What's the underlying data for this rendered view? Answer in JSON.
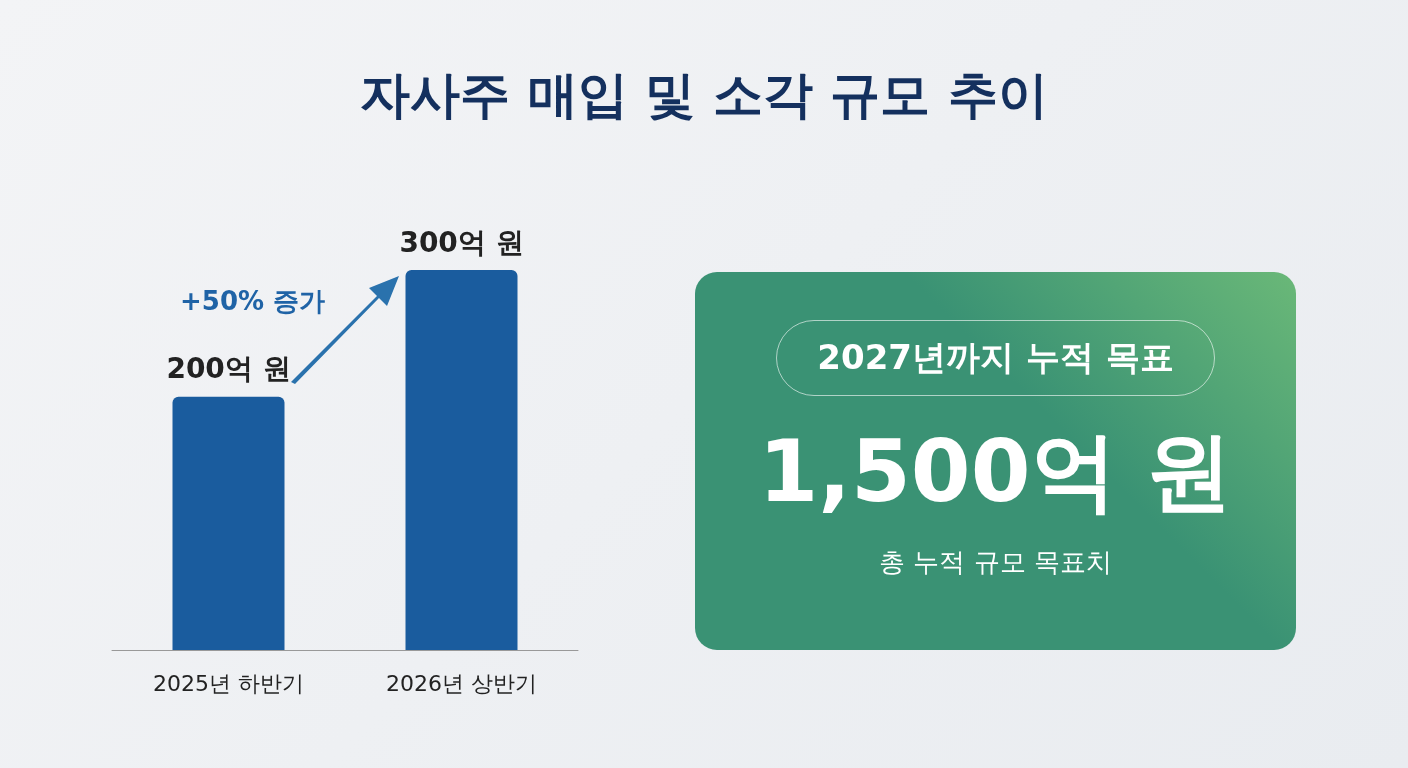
{
  "chart_data": [
    {
      "type": "bar",
      "title": "자사주 매입 및 소각 규모 추이",
      "categories": [
        "2025년 하반기",
        "2026년 상반기"
      ],
      "values": [
        200,
        300
      ],
      "value_labels": [
        "200억 원",
        "300억 원"
      ],
      "color": "#1a5c9e",
      "tick_labels": "x",
      "annotations": [
        "+50% 증가"
      ]
    },
    {
      "type": "other",
      "title": "2027년까지 누적 목표",
      "color": "#3a9274",
      "annotations": [
        "1,500억 원",
        "총 누적 규모 목표치"
      ]
    }
  ]
}
